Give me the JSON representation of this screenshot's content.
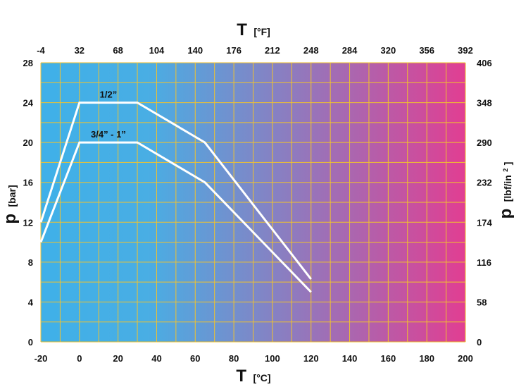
{
  "chart_data": {
    "type": "line",
    "background_gradient": [
      "#3fb0e8",
      "#e13e92"
    ],
    "grid": true,
    "grid_color": "#f0c22e",
    "line_color": "#ffffff",
    "x_bottom": {
      "symbol": "T",
      "unit": "[°C]",
      "range": [
        -20,
        200
      ],
      "ticks": [
        "-20",
        "0",
        "20",
        "40",
        "60",
        "80",
        "100",
        "120",
        "140",
        "160",
        "180",
        "200"
      ]
    },
    "x_top": {
      "symbol": "T",
      "unit": "[°F]",
      "ticks": [
        "-4",
        "32",
        "68",
        "104",
        "140",
        "176",
        "212",
        "248",
        "284",
        "320",
        "356",
        "392"
      ]
    },
    "y_left": {
      "symbol": "p",
      "unit": "[bar]",
      "range": [
        0,
        28
      ],
      "ticks": [
        "0",
        "4",
        "8",
        "12",
        "16",
        "20",
        "24",
        "28"
      ]
    },
    "y_right": {
      "symbol": "p",
      "unit_main": "[lbf/in",
      "unit_sup": "2",
      "unit_end": "]",
      "ticks": [
        "0",
        "58",
        "116",
        "174",
        "232",
        "290",
        "348",
        "406"
      ]
    },
    "series": [
      {
        "name": "1/2”",
        "x": [
          -20,
          0,
          30,
          65,
          120
        ],
        "y": [
          12,
          24,
          24,
          20,
          6.3
        ]
      },
      {
        "name": "3/4” - 1”",
        "x": [
          -20,
          0,
          30,
          65,
          120
        ],
        "y": [
          10,
          20,
          20,
          16,
          5
        ]
      }
    ]
  }
}
